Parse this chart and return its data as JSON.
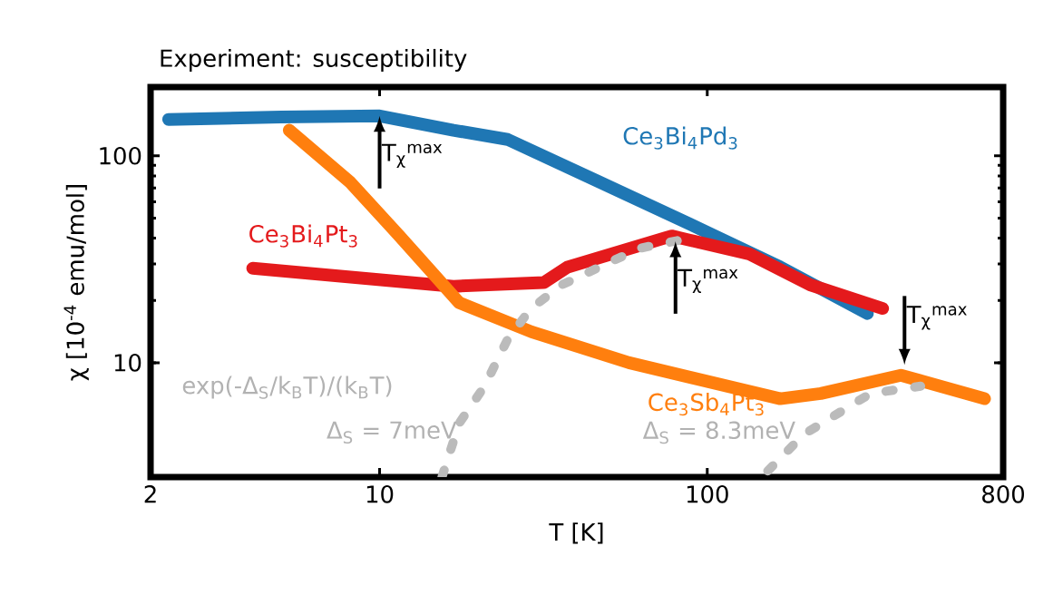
{
  "chart_data": {
    "type": "line",
    "title": "Experiment: susceptibility",
    "xlabel": "T [K]",
    "ylabel": "χ [10$^{-4}$ emu/mol]",
    "log": "xy",
    "xlim": [
      2,
      800
    ],
    "ylim": [
      2.8,
      215
    ],
    "xticks": [
      2,
      10,
      100,
      800
    ],
    "yticks": [
      10,
      100
    ],
    "legend": false,
    "grid": false,
    "marker": "none",
    "series": [
      {
        "name": "Ce$_{3}$Bi$_{4}$Pd$_{3}$",
        "color": "#1f77b4",
        "x": [
          2.27,
          5,
          10,
          16.8,
          24.6,
          46.7,
          88,
          167,
          308
        ],
        "values": [
          150,
          154,
          156,
          133,
          120,
          75,
          47,
          29,
          17.3
        ]
      },
      {
        "name": "Ce$_{3}$Bi$_{4}$Pt$_{3}$",
        "color": "#e41a1c",
        "x": [
          4.1,
          16.8,
          31.7,
          37.5,
          77.9,
          134,
          206,
          343
        ],
        "values": [
          28.6,
          23.4,
          24.4,
          29,
          41,
          33.6,
          23.8,
          18.3
        ]
      },
      {
        "name": "Ce$_{3}$Sb$_{4}$Pt$_{3}$",
        "color": "#ff7f0e",
        "x": [
          5.3,
          8.1,
          11.5,
          17.5,
          29.1,
          57.7,
          167,
          222,
          390,
          702
        ],
        "values": [
          133,
          75,
          41,
          19.5,
          14.1,
          10,
          6.7,
          7.1,
          8.7,
          6.7
        ]
      },
      {
        "color": "#bbbbbb",
        "line_style": "dotted",
        "x": [
          15.5,
          17.5,
          20.9,
          24.6,
          29,
          36,
          62,
          85
        ],
        "values": [
          2.8,
          5.1,
          7.7,
          13,
          18.3,
          23.8,
          35.7,
          39.5
        ]
      },
      {
        "color": "#bbbbbb",
        "line_style": "dotted",
        "x": [
          153,
          197,
          315,
          448
        ],
        "values": [
          3,
          4.5,
          7.1,
          7.7
        ]
      }
    ],
    "annotations": [
      {
        "text": "T$_{χ}$$^{max}$",
        "x": 10,
        "y": 156
      },
      {
        "text": "T$_{χ}$$^{max}$",
        "x": 80,
        "y": 38.7
      },
      {
        "text": "T$_{χ}$$^{max}$",
        "x": 400,
        "y": 9
      },
      "exp(-Δ$_{S}$/k$_{B}$T)/(k$_{B}$T)",
      "Δ$_{S}$ = 7meV",
      "Δ$_{S}$ = 8.3meV"
    ]
  }
}
